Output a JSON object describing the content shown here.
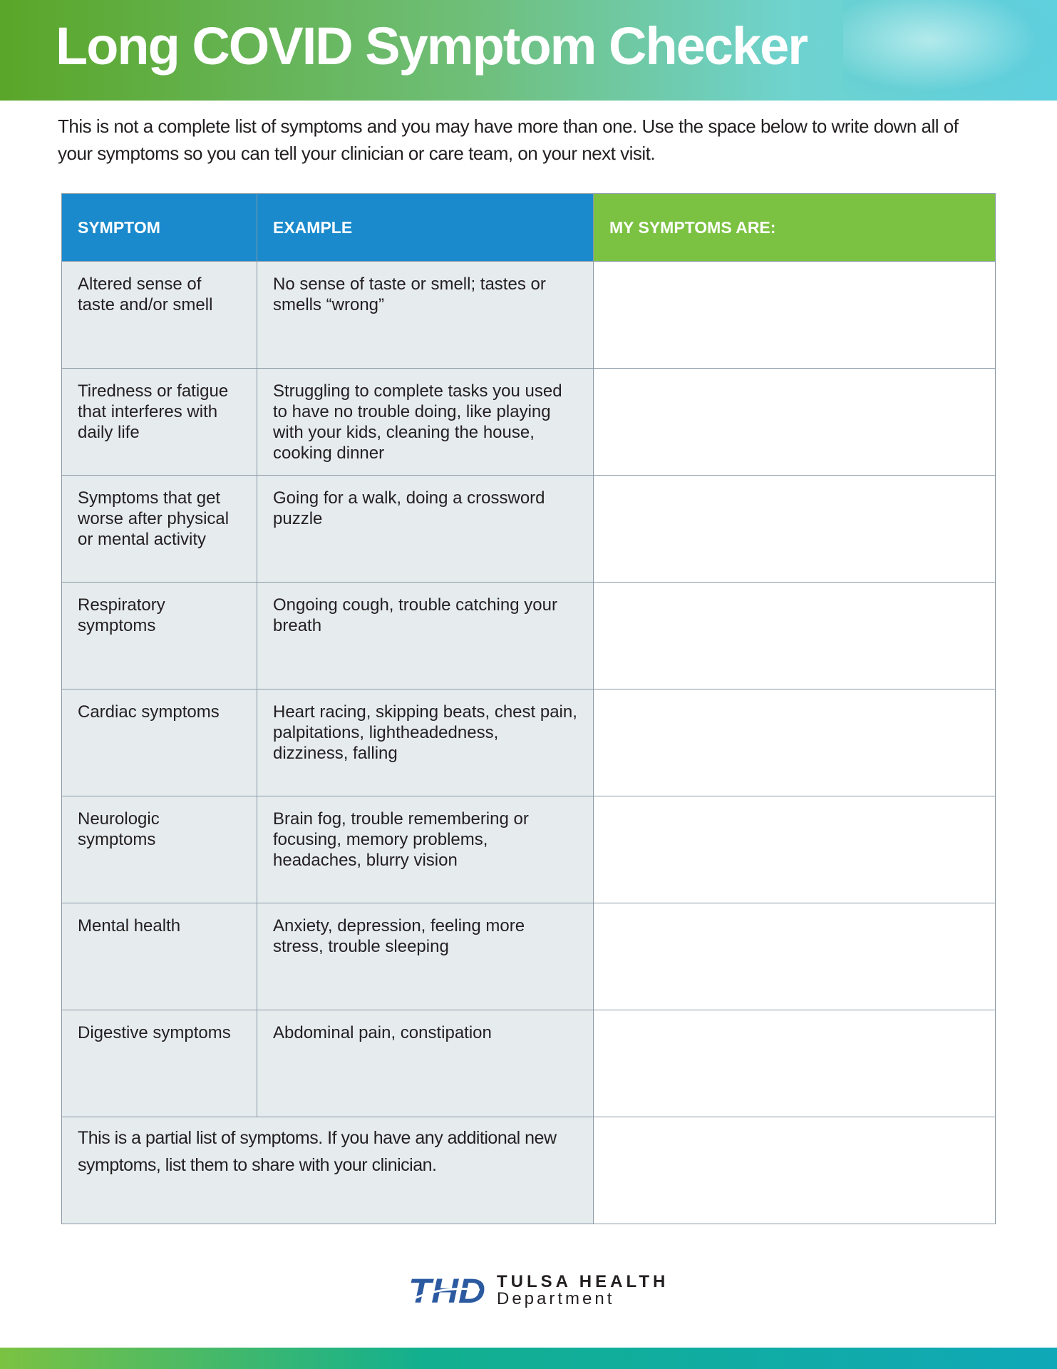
{
  "header": {
    "title": "Long COVID Symptom Checker"
  },
  "intro": "This is not a complete list of symptoms and you may have more than one. Use the space below to write down all of your symptoms so you can tell your clinician or care team, on your next visit.",
  "table": {
    "columns": [
      "SYMPTOM",
      "EXAMPLE",
      "MY SYMPTOMS ARE:"
    ],
    "rows": [
      {
        "symptom": "Altered sense of taste and/or smell",
        "example": "No sense of taste or smell; tastes or smells “wrong”",
        "mine": ""
      },
      {
        "symptom": "Tiredness or fatigue that interferes with daily life",
        "example": "Struggling to complete tasks you used to have no trouble doing, like playing with your kids, cleaning the house, cooking dinner",
        "mine": ""
      },
      {
        "symptom": "Symptoms that get worse after physical or mental activity",
        "example": "Going for a walk, doing a crossword puzzle",
        "mine": ""
      },
      {
        "symptom": "Respiratory symptoms",
        "example": "Ongoing cough, trouble catching your breath",
        "mine": ""
      },
      {
        "symptom": "Cardiac symptoms",
        "example": "Heart racing, skipping beats, chest pain, palpitations, lightheadedness, dizziness, falling",
        "mine": ""
      },
      {
        "symptom": "Neurologic symptoms",
        "example": "Brain fog, trouble remembering or focusing, memory problems, headaches, blurry vision",
        "mine": ""
      },
      {
        "symptom": "Mental health",
        "example": "Anxiety, depression, feeling more stress, trouble sleeping",
        "mine": ""
      },
      {
        "symptom": "Digestive symptoms",
        "example": "Abdominal pain, constipation",
        "mine": ""
      }
    ],
    "footer_note": "This is a partial list of symptoms. If you have any additional new symptoms, list them to share with your clinician."
  },
  "logo": {
    "mark": "THD",
    "line1": "TULSA HEALTH",
    "line2": "Department"
  },
  "colors": {
    "header_blue": "#1a8acd",
    "header_green": "#7bc242",
    "cell_grey": "#e6ebee",
    "logo_blue": "#2b5aa0"
  }
}
